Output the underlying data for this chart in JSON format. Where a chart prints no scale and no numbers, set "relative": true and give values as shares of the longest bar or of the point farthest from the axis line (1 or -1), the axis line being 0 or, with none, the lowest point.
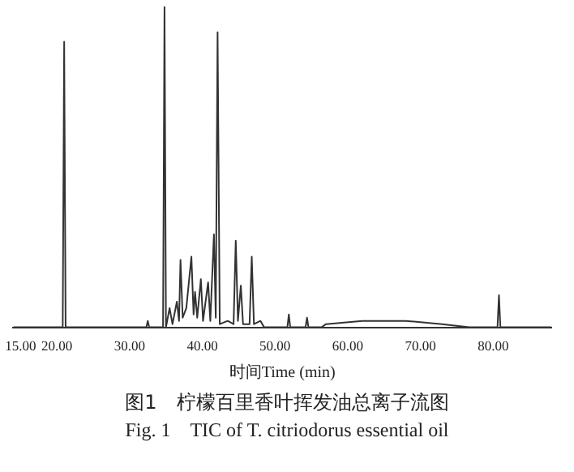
{
  "chart_data": {
    "type": "line",
    "relative": true,
    "xlabel": "时间Time (min)",
    "xlim": [
      14,
      88
    ],
    "xticks": [
      {
        "value": 15,
        "label": "15.00"
      },
      {
        "value": 20,
        "label": "20.00"
      },
      {
        "value": 30,
        "label": "30.00"
      },
      {
        "value": 40,
        "label": "40.00"
      },
      {
        "value": 50,
        "label": "50.00"
      },
      {
        "value": 60,
        "label": "60.00"
      },
      {
        "value": 70,
        "label": "70.00"
      },
      {
        "value": 80,
        "label": "80.00"
      }
    ],
    "x": [
      14,
      20.8,
      21.0,
      21.2,
      32.3,
      32.5,
      32.7,
      34.6,
      34.8,
      35.0,
      35.5,
      35.9,
      36.5,
      36.8,
      37.0,
      37.3,
      37.8,
      38.5,
      38.8,
      39.0,
      39.3,
      39.8,
      40.1,
      40.8,
      41.1,
      41.6,
      41.85,
      42.1,
      42.4,
      43.5,
      44.3,
      44.6,
      44.9,
      45.3,
      45.6,
      46.5,
      46.8,
      47.1,
      48,
      48.5,
      51.7,
      51.9,
      52.1,
      54.2,
      54.4,
      54.6,
      56.4,
      57,
      62,
      68,
      73,
      76.7,
      80.6,
      80.8,
      81.0,
      88
    ],
    "values": [
      0,
      0,
      0.89,
      0,
      0,
      0.02,
      0,
      0,
      1,
      0,
      0.06,
      0.01,
      0.08,
      0.02,
      0.21,
      0.03,
      0.06,
      0.22,
      0.04,
      0.11,
      0.03,
      0.15,
      0.02,
      0.14,
      0.02,
      0.29,
      0.03,
      0.92,
      0.01,
      0.02,
      0.01,
      0.27,
      0.02,
      0.13,
      0.01,
      0.01,
      0.22,
      0.01,
      0.02,
      0,
      0,
      0.04,
      0,
      0,
      0.03,
      0,
      0,
      0.01,
      0.02,
      0.02,
      0.01,
      0,
      0,
      0.1,
      0,
      0
    ],
    "color": "#333333",
    "marker": "none",
    "legend": false,
    "grid": false,
    "annotations": [
      "图1　柠檬百里香叶挥发油总离子流图",
      "Fig. 1　TIC of T. citriodorus essential oil"
    ]
  }
}
